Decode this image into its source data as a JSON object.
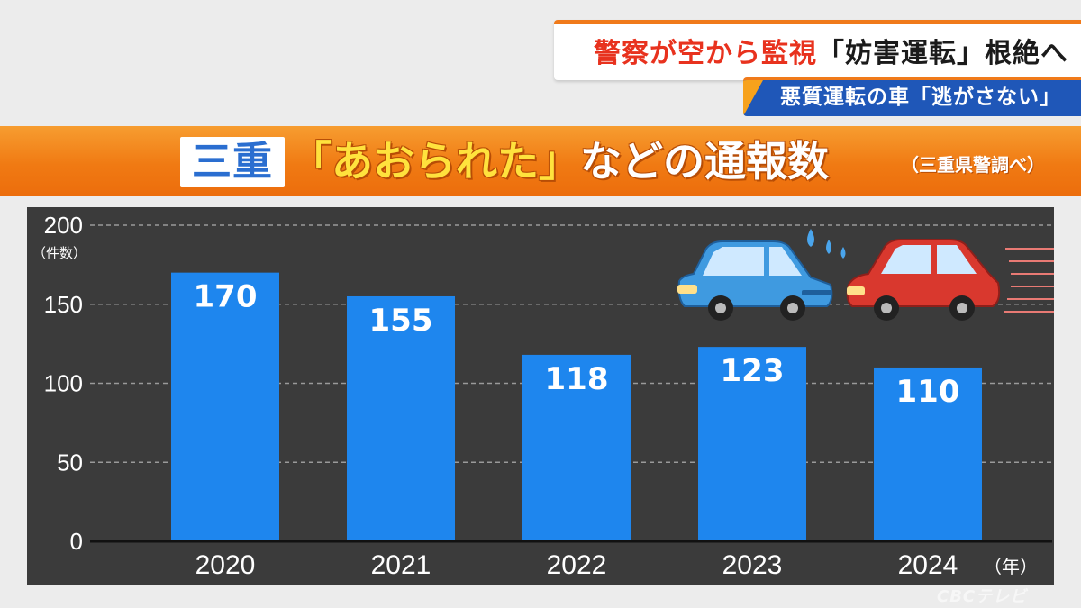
{
  "headline": {
    "red": "警察が空から監視",
    "dark": "「妨害運転」根絶へ"
  },
  "subhead": "悪質運転の車「逃がさない」",
  "title": {
    "region": "三重",
    "quote": "「あおられた」",
    "rest": "などの通報数",
    "source": "（三重県警調べ）"
  },
  "chart_data": {
    "type": "bar",
    "categories": [
      "2020",
      "2021",
      "2022",
      "2023",
      "2024"
    ],
    "values": [
      170,
      155,
      118,
      123,
      110
    ],
    "value_labels": [
      "170",
      "155",
      "118",
      "123",
      "110"
    ],
    "ylim": [
      0,
      200
    ],
    "yticks": [
      0,
      50,
      100,
      150,
      200
    ],
    "ylabel": "（件数）",
    "xlabel": "（年）",
    "grid": true,
    "colors": {
      "bar": "#1e86ee",
      "background": "#3b3b3b",
      "grid": "#9a9a9a"
    }
  },
  "illustration": {
    "cars": [
      "blue-car-icon",
      "red-car-icon"
    ],
    "colors": {
      "blue": "#3f9ae0",
      "red": "#d9382e"
    }
  },
  "watermark": "CBCテレビ"
}
